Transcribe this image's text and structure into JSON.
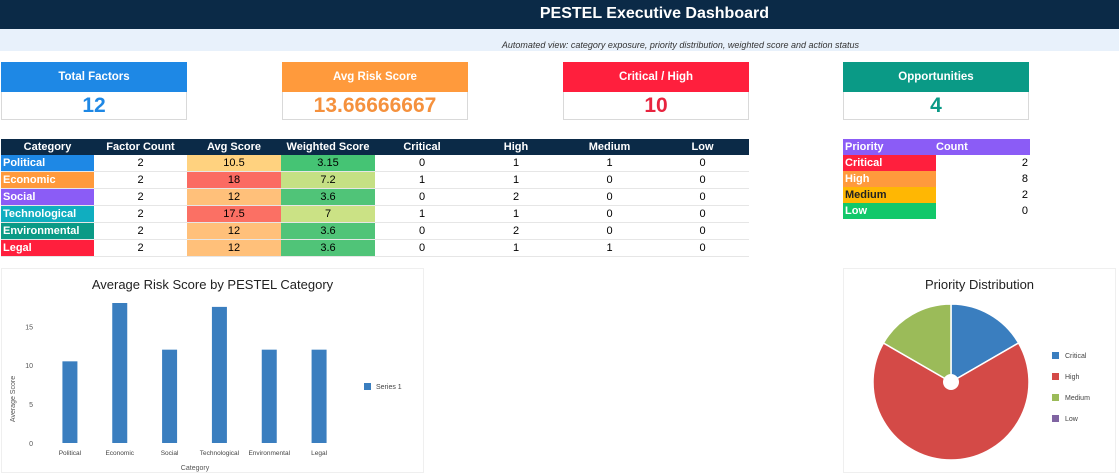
{
  "title": "PESTEL Executive Dashboard",
  "subtitle": "Automated view: category exposure, priority distribution, weighted score and action status",
  "kpis": [
    {
      "label": "Total Factors",
      "value": "12",
      "color": "#1e88e5",
      "value_color": "#1e88e5"
    },
    {
      "label": "Avg Risk Score",
      "value": "13.66666667",
      "color": "#ff9a3c",
      "value_color": "#f5913d"
    },
    {
      "label": "Critical / High",
      "value": "10",
      "color": "#ff1f3d",
      "value_color": "#e8243f"
    },
    {
      "label": "Opportunities",
      "value": "4",
      "color": "#0a9a86",
      "value_color": "#0a9a86"
    }
  ],
  "category_table": {
    "headers": [
      "Category",
      "Factor Count",
      "Avg Score",
      "Weighted Score",
      "Critical",
      "High",
      "Medium",
      "Low"
    ],
    "rows": [
      {
        "category": "Political",
        "color": "#1e88e5",
        "count": "2",
        "avg": "10.5",
        "avg_bg": "#ffd27f",
        "weighted": "3.15",
        "weighted_bg": "#45c474",
        "critical": "0",
        "high": "1",
        "medium": "1",
        "low": "0"
      },
      {
        "category": "Economic",
        "color": "#ff9a3c",
        "count": "2",
        "avg": "18",
        "avg_bg": "#fb6b62",
        "weighted": "7.2",
        "weighted_bg": "#c5e084",
        "critical": "1",
        "high": "1",
        "medium": "0",
        "low": "0"
      },
      {
        "category": "Social",
        "color": "#8b5cf6",
        "count": "2",
        "avg": "12",
        "avg_bg": "#ffc07a",
        "weighted": "3.6",
        "weighted_bg": "#50c478",
        "critical": "0",
        "high": "2",
        "medium": "0",
        "low": "0"
      },
      {
        "category": "Technological",
        "color": "#10aec0",
        "count": "2",
        "avg": "17.5",
        "avg_bg": "#fb7064",
        "weighted": "7",
        "weighted_bg": "#cbe285",
        "critical": "1",
        "high": "1",
        "medium": "0",
        "low": "0"
      },
      {
        "category": "Environmental",
        "color": "#0a9a86",
        "count": "2",
        "avg": "12",
        "avg_bg": "#ffc07a",
        "weighted": "3.6",
        "weighted_bg": "#50c478",
        "critical": "0",
        "high": "2",
        "medium": "0",
        "low": "0"
      },
      {
        "category": "Legal",
        "color": "#ff1f3d",
        "count": "2",
        "avg": "12",
        "avg_bg": "#ffc07a",
        "weighted": "3.6",
        "weighted_bg": "#50c478",
        "critical": "0",
        "high": "1",
        "medium": "1",
        "low": "0"
      }
    ]
  },
  "priority_table": {
    "headers": [
      "Priority",
      "Count"
    ],
    "header_color": "#8b5cf6",
    "rows": [
      {
        "label": "Critical",
        "count": "2",
        "color": "#ff1f3d",
        "text_color": "#ffffff"
      },
      {
        "label": "High",
        "count": "8",
        "color": "#ff9a3c",
        "text_color": "#ffffff"
      },
      {
        "label": "Medium",
        "count": "2",
        "color": "#ffb703",
        "text_color": "#222222"
      },
      {
        "label": "Low",
        "count": "0",
        "color": "#12c86a",
        "text_color": "#ffffff"
      }
    ]
  },
  "chart_data": [
    {
      "type": "bar",
      "title": "Average Risk Score by PESTEL Category",
      "xlabel": "Category",
      "ylabel": "Average Score",
      "categories": [
        "Political",
        "Economic",
        "Social",
        "Technological",
        "Environmental",
        "Legal"
      ],
      "series": [
        {
          "name": "Series 1",
          "values": [
            10.5,
            18,
            12,
            17.5,
            12,
            12
          ],
          "color": "#3a7ebf"
        }
      ],
      "yticks": [
        "0",
        "5",
        "10",
        "15"
      ],
      "ylim": [
        0,
        18
      ],
      "legend": "right",
      "grid": false
    },
    {
      "type": "pie",
      "title": "Priority Distribution",
      "labels": [
        "Critical",
        "High",
        "Medium",
        "Low"
      ],
      "values": [
        2,
        8,
        2,
        0
      ],
      "colors": [
        "#3a7ebf",
        "#d44a47",
        "#9bbb59",
        "#8064a2"
      ],
      "legend": "right"
    }
  ]
}
